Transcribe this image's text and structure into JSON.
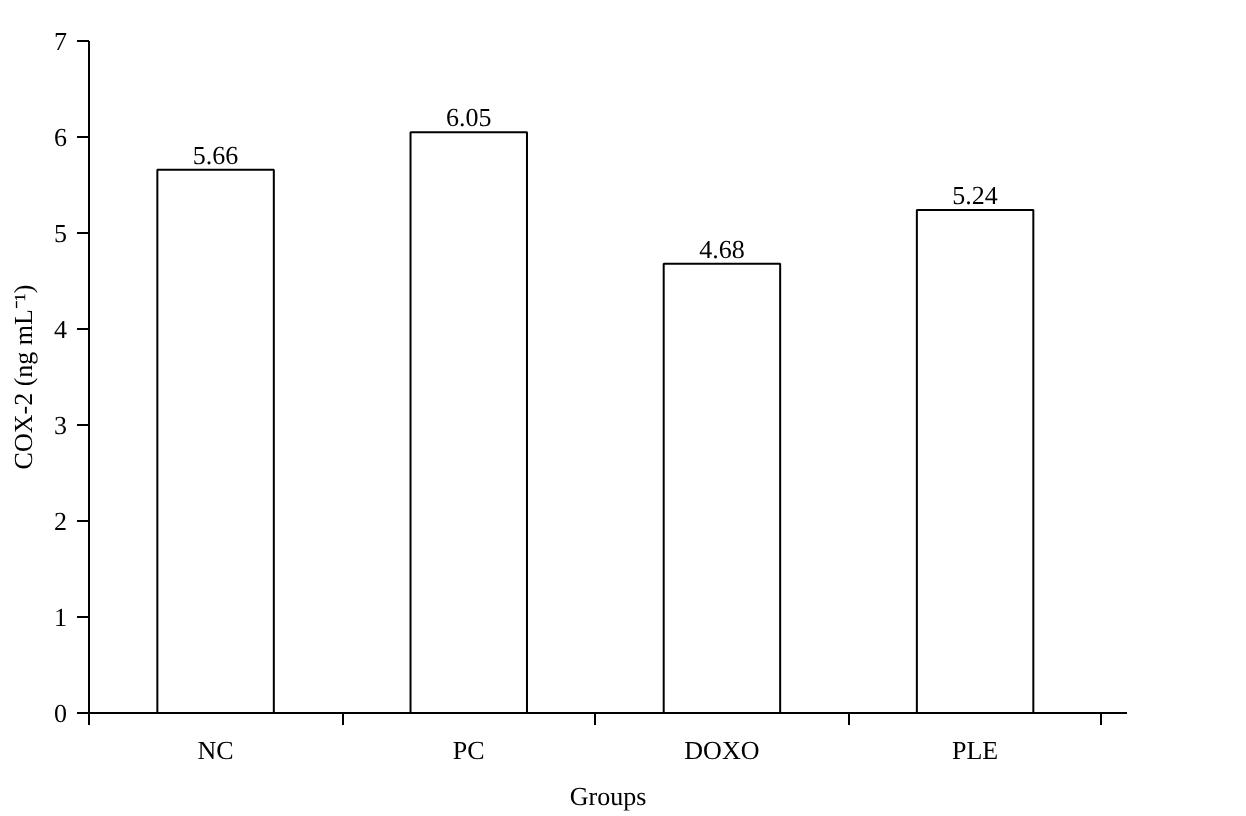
{
  "chart_data": {
    "type": "bar",
    "xlabel": "Groups",
    "ylabel": "COX-2 (ng mL⁻¹)",
    "categories": [
      "NC",
      "PC",
      "DOXO",
      "PLE"
    ],
    "values": [
      5.66,
      6.05,
      4.68,
      5.24
    ],
    "color": "#ffffff",
    "ylim": [
      0,
      7
    ],
    "yticks": [
      0,
      1,
      2,
      3,
      4,
      5,
      6,
      7
    ],
    "data_labels": true,
    "grid": false
  }
}
